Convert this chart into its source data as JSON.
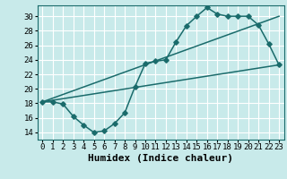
{
  "title": "",
  "xlabel": "Humidex (Indice chaleur)",
  "bg_color": "#c8eaea",
  "grid_color": "#ffffff",
  "line_color": "#1a6b6b",
  "xlim": [
    -0.5,
    23.5
  ],
  "ylim": [
    13,
    31.5
  ],
  "xticks": [
    0,
    1,
    2,
    3,
    4,
    5,
    6,
    7,
    8,
    9,
    10,
    11,
    12,
    13,
    14,
    15,
    16,
    17,
    18,
    19,
    20,
    21,
    22,
    23
  ],
  "yticks": [
    14,
    16,
    18,
    20,
    22,
    24,
    26,
    28,
    30
  ],
  "curve1_x": [
    0,
    1,
    2,
    3,
    4,
    5,
    6,
    7,
    8,
    9,
    10,
    11,
    12,
    13,
    14,
    15,
    16,
    17,
    18,
    19,
    20,
    21,
    22,
    23
  ],
  "curve1_y": [
    18.2,
    18.2,
    17.9,
    16.2,
    15.0,
    14.0,
    14.2,
    15.2,
    16.7,
    20.3,
    23.5,
    23.8,
    24.0,
    26.5,
    28.7,
    30.0,
    31.2,
    30.3,
    30.0,
    30.0,
    30.0,
    28.8,
    26.2,
    23.3
  ],
  "line2_x": [
    0,
    23
  ],
  "line2_y": [
    18.2,
    30.0
  ],
  "line3_x": [
    0,
    23
  ],
  "line3_y": [
    18.2,
    23.3
  ],
  "marker_size": 2.8,
  "line_width": 1.1,
  "tick_fontsize": 6.5,
  "label_fontsize": 8.0
}
